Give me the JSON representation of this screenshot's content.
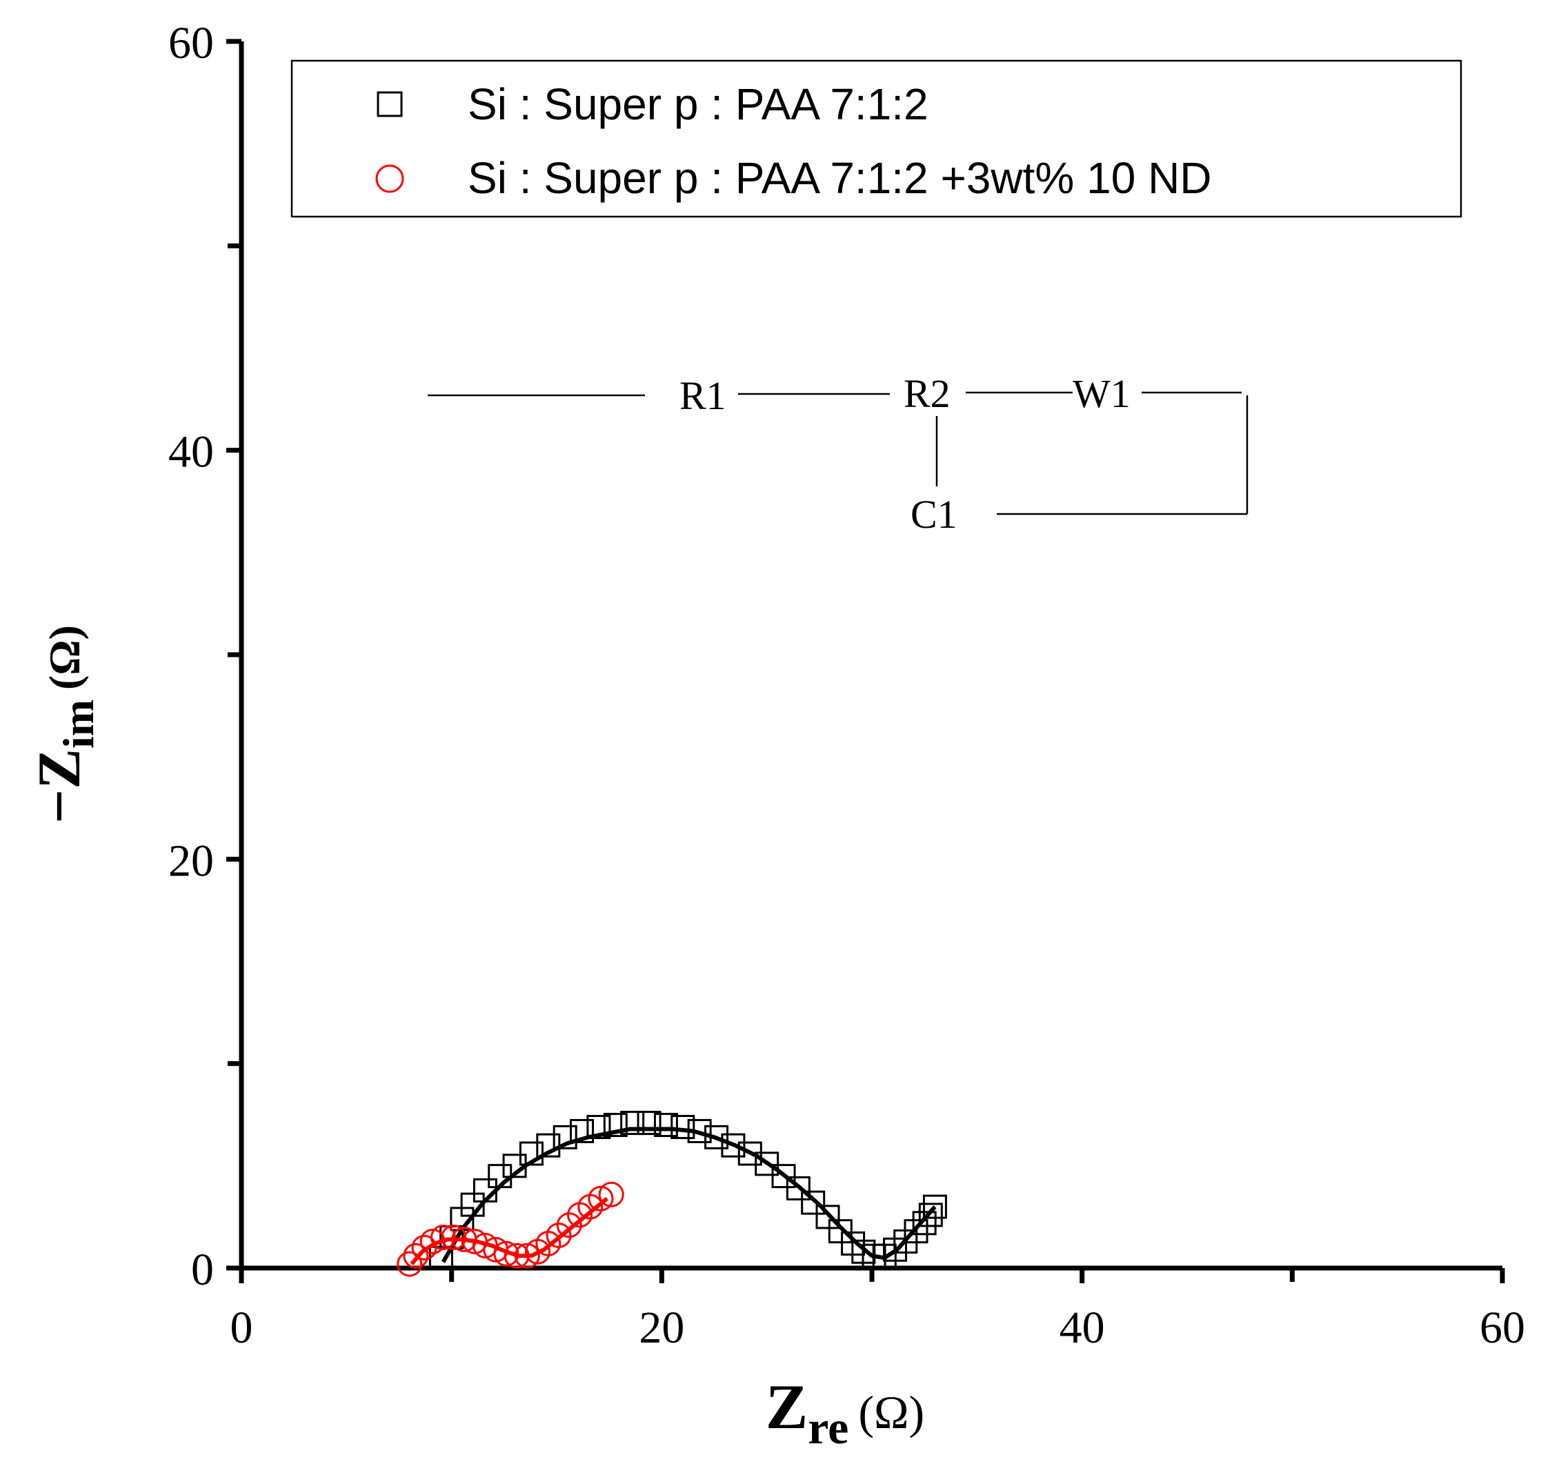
{
  "chart_data": {
    "type": "scatter",
    "title": "",
    "xlabel": {
      "main": "Z",
      "sub": "re",
      "unit": "(Ω)"
    },
    "ylabel": {
      "prefix": "−",
      "main": "Z",
      "sub": "im",
      "unit": "(Ω)"
    },
    "xlim": [
      0,
      60
    ],
    "ylim": [
      0,
      60
    ],
    "xticks": [
      0,
      20,
      40,
      60
    ],
    "yticks": [
      0,
      20,
      40,
      60
    ],
    "grid": false,
    "legend_position": "top",
    "series": [
      {
        "name": "Si : Super p : PAA  7:1:2",
        "marker": "square",
        "color": "#000000",
        "x": [
          9.5,
          10.0,
          10.5,
          11.0,
          11.6,
          12.3,
          13.0,
          13.8,
          14.6,
          15.4,
          16.2,
          17.0,
          17.8,
          18.6,
          19.4,
          20.2,
          21.0,
          21.8,
          22.6,
          23.4,
          24.2,
          25.0,
          25.8,
          26.5,
          27.2,
          27.9,
          28.5,
          29.1,
          29.6,
          30.1,
          30.6,
          31.1,
          31.6,
          32.1,
          32.5,
          32.8,
          33.0
        ],
        "y": [
          0.5,
          1.5,
          2.4,
          3.1,
          3.8,
          4.5,
          5.0,
          5.6,
          6.0,
          6.4,
          6.7,
          6.9,
          7.0,
          7.1,
          7.1,
          7.0,
          6.9,
          6.7,
          6.4,
          6.0,
          5.6,
          5.1,
          4.5,
          3.9,
          3.2,
          2.5,
          1.8,
          1.2,
          0.8,
          0.6,
          0.6,
          0.9,
          1.3,
          1.8,
          2.2,
          2.6,
          3.0
        ],
        "fit_x": [
          9.6,
          10.5,
          11.5,
          12.5,
          13.5,
          14.5,
          15.5,
          16.5,
          17.5,
          18.5,
          19.5,
          20.5,
          21.5,
          22.5,
          23.5,
          24.5,
          25.5,
          26.5,
          27.5,
          28.5,
          29.3,
          30.0,
          30.6,
          31.2,
          31.8,
          32.4,
          33.0
        ],
        "fit_y": [
          0.3,
          1.9,
          3.2,
          4.2,
          5.0,
          5.6,
          6.1,
          6.4,
          6.6,
          6.8,
          6.8,
          6.8,
          6.7,
          6.4,
          6.0,
          5.5,
          4.8,
          4.0,
          3.1,
          2.0,
          1.2,
          0.6,
          0.5,
          0.9,
          1.6,
          2.3,
          3.0
        ]
      },
      {
        "name": "Si : Super p : PAA  7:1:2 +3wt% 10 ND",
        "marker": "circle",
        "color": "#ff0000",
        "x": [
          8.0,
          8.3,
          8.7,
          9.1,
          9.6,
          10.1,
          10.6,
          11.1,
          11.6,
          12.1,
          12.6,
          13.1,
          13.6,
          14.1,
          14.6,
          15.1,
          15.6,
          16.1,
          16.6,
          17.1,
          17.6
        ],
        "y": [
          0.2,
          0.6,
          1.0,
          1.3,
          1.5,
          1.5,
          1.4,
          1.3,
          1.1,
          0.9,
          0.7,
          0.6,
          0.6,
          0.8,
          1.2,
          1.6,
          2.1,
          2.6,
          3.0,
          3.4,
          3.6
        ],
        "fit_x": [
          8.1,
          8.6,
          9.2,
          9.8,
          10.5,
          11.2,
          11.9,
          12.6,
          13.2,
          13.8,
          14.4,
          15.0,
          15.6,
          16.2,
          16.8,
          17.4
        ],
        "fit_y": [
          0.2,
          0.8,
          1.2,
          1.4,
          1.4,
          1.3,
          1.1,
          0.8,
          0.6,
          0.6,
          0.9,
          1.4,
          1.9,
          2.4,
          2.9,
          3.4
        ]
      }
    ]
  },
  "circuit": {
    "r1": "R1",
    "r2": "R2",
    "w1": "W1",
    "c1": "C1"
  }
}
